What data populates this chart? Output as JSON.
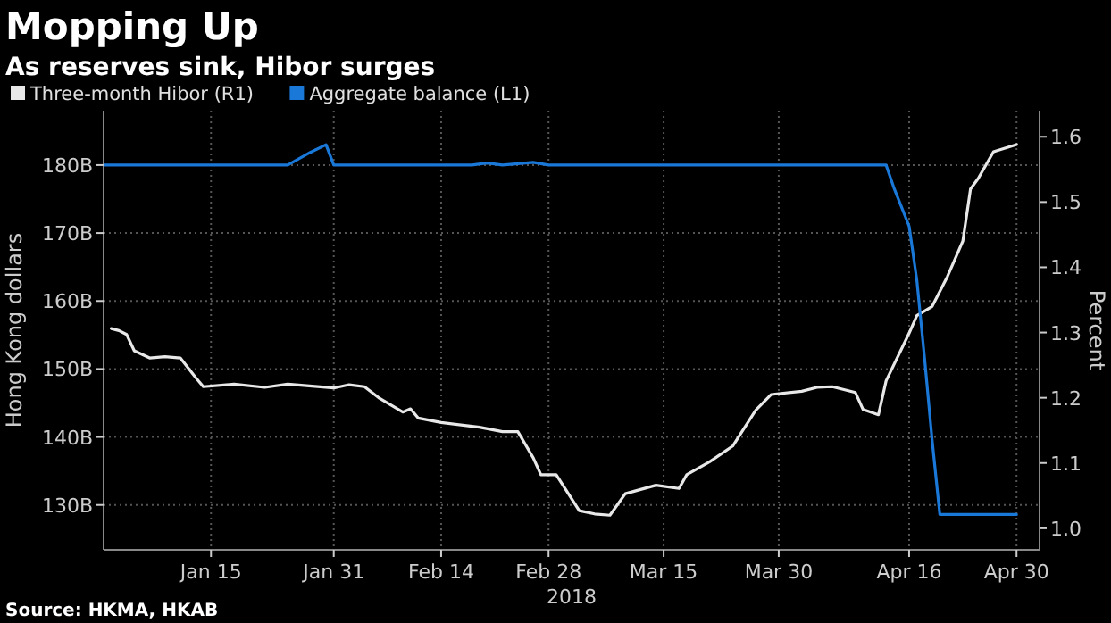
{
  "chart_data": {
    "type": "line",
    "title": "Mopping Up",
    "subtitle": "As reserves sink, Hibor surges",
    "xlabel": "2018",
    "ylabel": "Hong Kong dollars",
    "y2label": "Percent",
    "annotations": [
      "Source: HKMA, HKAB"
    ],
    "xlim": [
      "2018-01-01",
      "2018-05-03"
    ],
    "xticks": [
      {
        "value": "2018-01-15",
        "label": "Jan 15"
      },
      {
        "value": "2018-01-31",
        "label": "Jan 31"
      },
      {
        "value": "2018-02-14",
        "label": "Feb 14"
      },
      {
        "value": "2018-02-28",
        "label": "Feb 28"
      },
      {
        "value": "2018-03-15",
        "label": "Mar 15"
      },
      {
        "value": "2018-03-30",
        "label": "Mar 30"
      },
      {
        "value": "2018-04-16",
        "label": "Apr 16"
      },
      {
        "value": "2018-04-30",
        "label": "Apr 30"
      }
    ],
    "ylim": [
      123.4,
      188
    ],
    "yticks": [
      {
        "value": 130,
        "label": "130B"
      },
      {
        "value": 140,
        "label": "140B"
      },
      {
        "value": 150,
        "label": "150B"
      },
      {
        "value": 160,
        "label": "160B"
      },
      {
        "value": 170,
        "label": "170B"
      },
      {
        "value": 180,
        "label": "180B"
      }
    ],
    "y2lim": [
      0.967,
      1.64
    ],
    "y2ticks": [
      {
        "value": 1,
        "label": "1.0"
      },
      {
        "value": 1.1,
        "label": "1.1"
      },
      {
        "value": 1.2,
        "label": "1.2"
      },
      {
        "value": 1.3,
        "label": "1.3"
      },
      {
        "value": 1.4,
        "label": "1.4"
      },
      {
        "value": 1.5,
        "label": "1.5"
      },
      {
        "value": 1.6,
        "label": "1.6"
      }
    ],
    "grid": true,
    "legend": "top left",
    "marker": "none",
    "line_style": "solid",
    "series": [
      {
        "name": "Three-month Hibor (R1)",
        "color": "#e8e8e8",
        "axis": "y2",
        "x": [
          "2018-01-02",
          "2018-01-03",
          "2018-01-04",
          "2018-01-05",
          "2018-01-07",
          "2018-01-09",
          "2018-01-11",
          "2018-01-13",
          "2018-01-14",
          "2018-01-18",
          "2018-01-22",
          "2018-01-25",
          "2018-01-31",
          "2018-02-02",
          "2018-02-04",
          "2018-02-06",
          "2018-02-09",
          "2018-02-10",
          "2018-02-11",
          "2018-02-14",
          "2018-02-19",
          "2018-02-22",
          "2018-02-24",
          "2018-02-26",
          "2018-02-27",
          "2018-03-01",
          "2018-03-04",
          "2018-03-06",
          "2018-03-08",
          "2018-03-10",
          "2018-03-14",
          "2018-03-17",
          "2018-03-18",
          "2018-03-21",
          "2018-03-24",
          "2018-03-27",
          "2018-03-29",
          "2018-04-02",
          "2018-04-04",
          "2018-04-06",
          "2018-04-09",
          "2018-04-10",
          "2018-04-12",
          "2018-04-13",
          "2018-04-16",
          "2018-04-17",
          "2018-04-19",
          "2018-04-21",
          "2018-04-23",
          "2018-04-24",
          "2018-04-25",
          "2018-04-27",
          "2018-04-30"
        ],
        "values": [
          1.306,
          1.303,
          1.297,
          1.272,
          1.261,
          1.263,
          1.261,
          1.231,
          1.217,
          1.221,
          1.216,
          1.221,
          1.215,
          1.22,
          1.217,
          1.199,
          1.178,
          1.183,
          1.169,
          1.162,
          1.155,
          1.148,
          1.148,
          1.108,
          1.082,
          1.082,
          1.027,
          1.022,
          1.02,
          1.053,
          1.066,
          1.061,
          1.082,
          1.102,
          1.126,
          1.181,
          1.205,
          1.21,
          1.216,
          1.217,
          1.208,
          1.182,
          1.174,
          1.226,
          1.299,
          1.326,
          1.34,
          1.386,
          1.44,
          1.52,
          1.536,
          1.577,
          1.588
        ]
      },
      {
        "name": "Aggregate balance (L1)",
        "color": "#1a78d8",
        "x": [
          "2018-01-01",
          "2018-01-25",
          "2018-01-28",
          "2018-01-30",
          "2018-01-31",
          "2018-02-18",
          "2018-02-20",
          "2018-02-22",
          "2018-02-26",
          "2018-02-28",
          "2018-04-13",
          "2018-04-14",
          "2018-04-16",
          "2018-04-17",
          "2018-04-18",
          "2018-04-19",
          "2018-04-20",
          "2018-04-30"
        ],
        "values": [
          180,
          180,
          181.9,
          183,
          180,
          180,
          180.3,
          180,
          180.4,
          180,
          180,
          176.7,
          171,
          163.1,
          151.7,
          139.5,
          128.6,
          128.6
        ]
      }
    ]
  }
}
